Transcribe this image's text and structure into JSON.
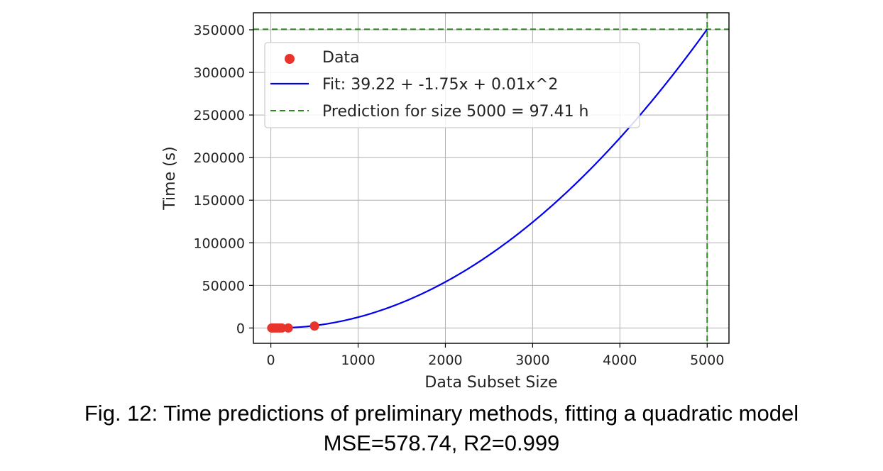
{
  "chart_data": {
    "type": "scatter",
    "xlabel": "Data Subset Size",
    "ylabel": "Time (s)",
    "xlim": [
      -200,
      5250
    ],
    "ylim": [
      -18000,
      370000
    ],
    "x_ticks": [
      0,
      1000,
      2000,
      3000,
      4000,
      5000
    ],
    "y_ticks": [
      0,
      50000,
      100000,
      150000,
      200000,
      250000,
      300000,
      350000
    ],
    "grid": true,
    "legend_position": "upper-left",
    "series": [
      {
        "name": "Data",
        "kind": "scatter",
        "color": "#e8342a",
        "points": [
          {
            "x": 10,
            "y": 0
          },
          {
            "x": 25,
            "y": 0
          },
          {
            "x": 50,
            "y": 0
          },
          {
            "x": 75,
            "y": 0
          },
          {
            "x": 100,
            "y": 0
          },
          {
            "x": 125,
            "y": 0
          },
          {
            "x": 200,
            "y": 0
          },
          {
            "x": 500,
            "y": 2300
          }
        ]
      },
      {
        "name": "Fit: 39.22 + -1.75x + 0.01x^2",
        "kind": "line",
        "color": "#0000ee",
        "coefficients": {
          "a": 39.22,
          "b": -1.75,
          "c": 0.014
        },
        "x_range": [
          0,
          5000
        ]
      },
      {
        "name": "Prediction for size 5000 = 97.41 h",
        "kind": "dashed-reference",
        "color": "#2a8a1e",
        "x": 5000,
        "y": 350676
      }
    ]
  },
  "caption": {
    "line1": "Fig. 12: Time predictions of preliminary methods, fitting a quadratic model",
    "line2": "MSE=578.74, R2=0.999"
  }
}
